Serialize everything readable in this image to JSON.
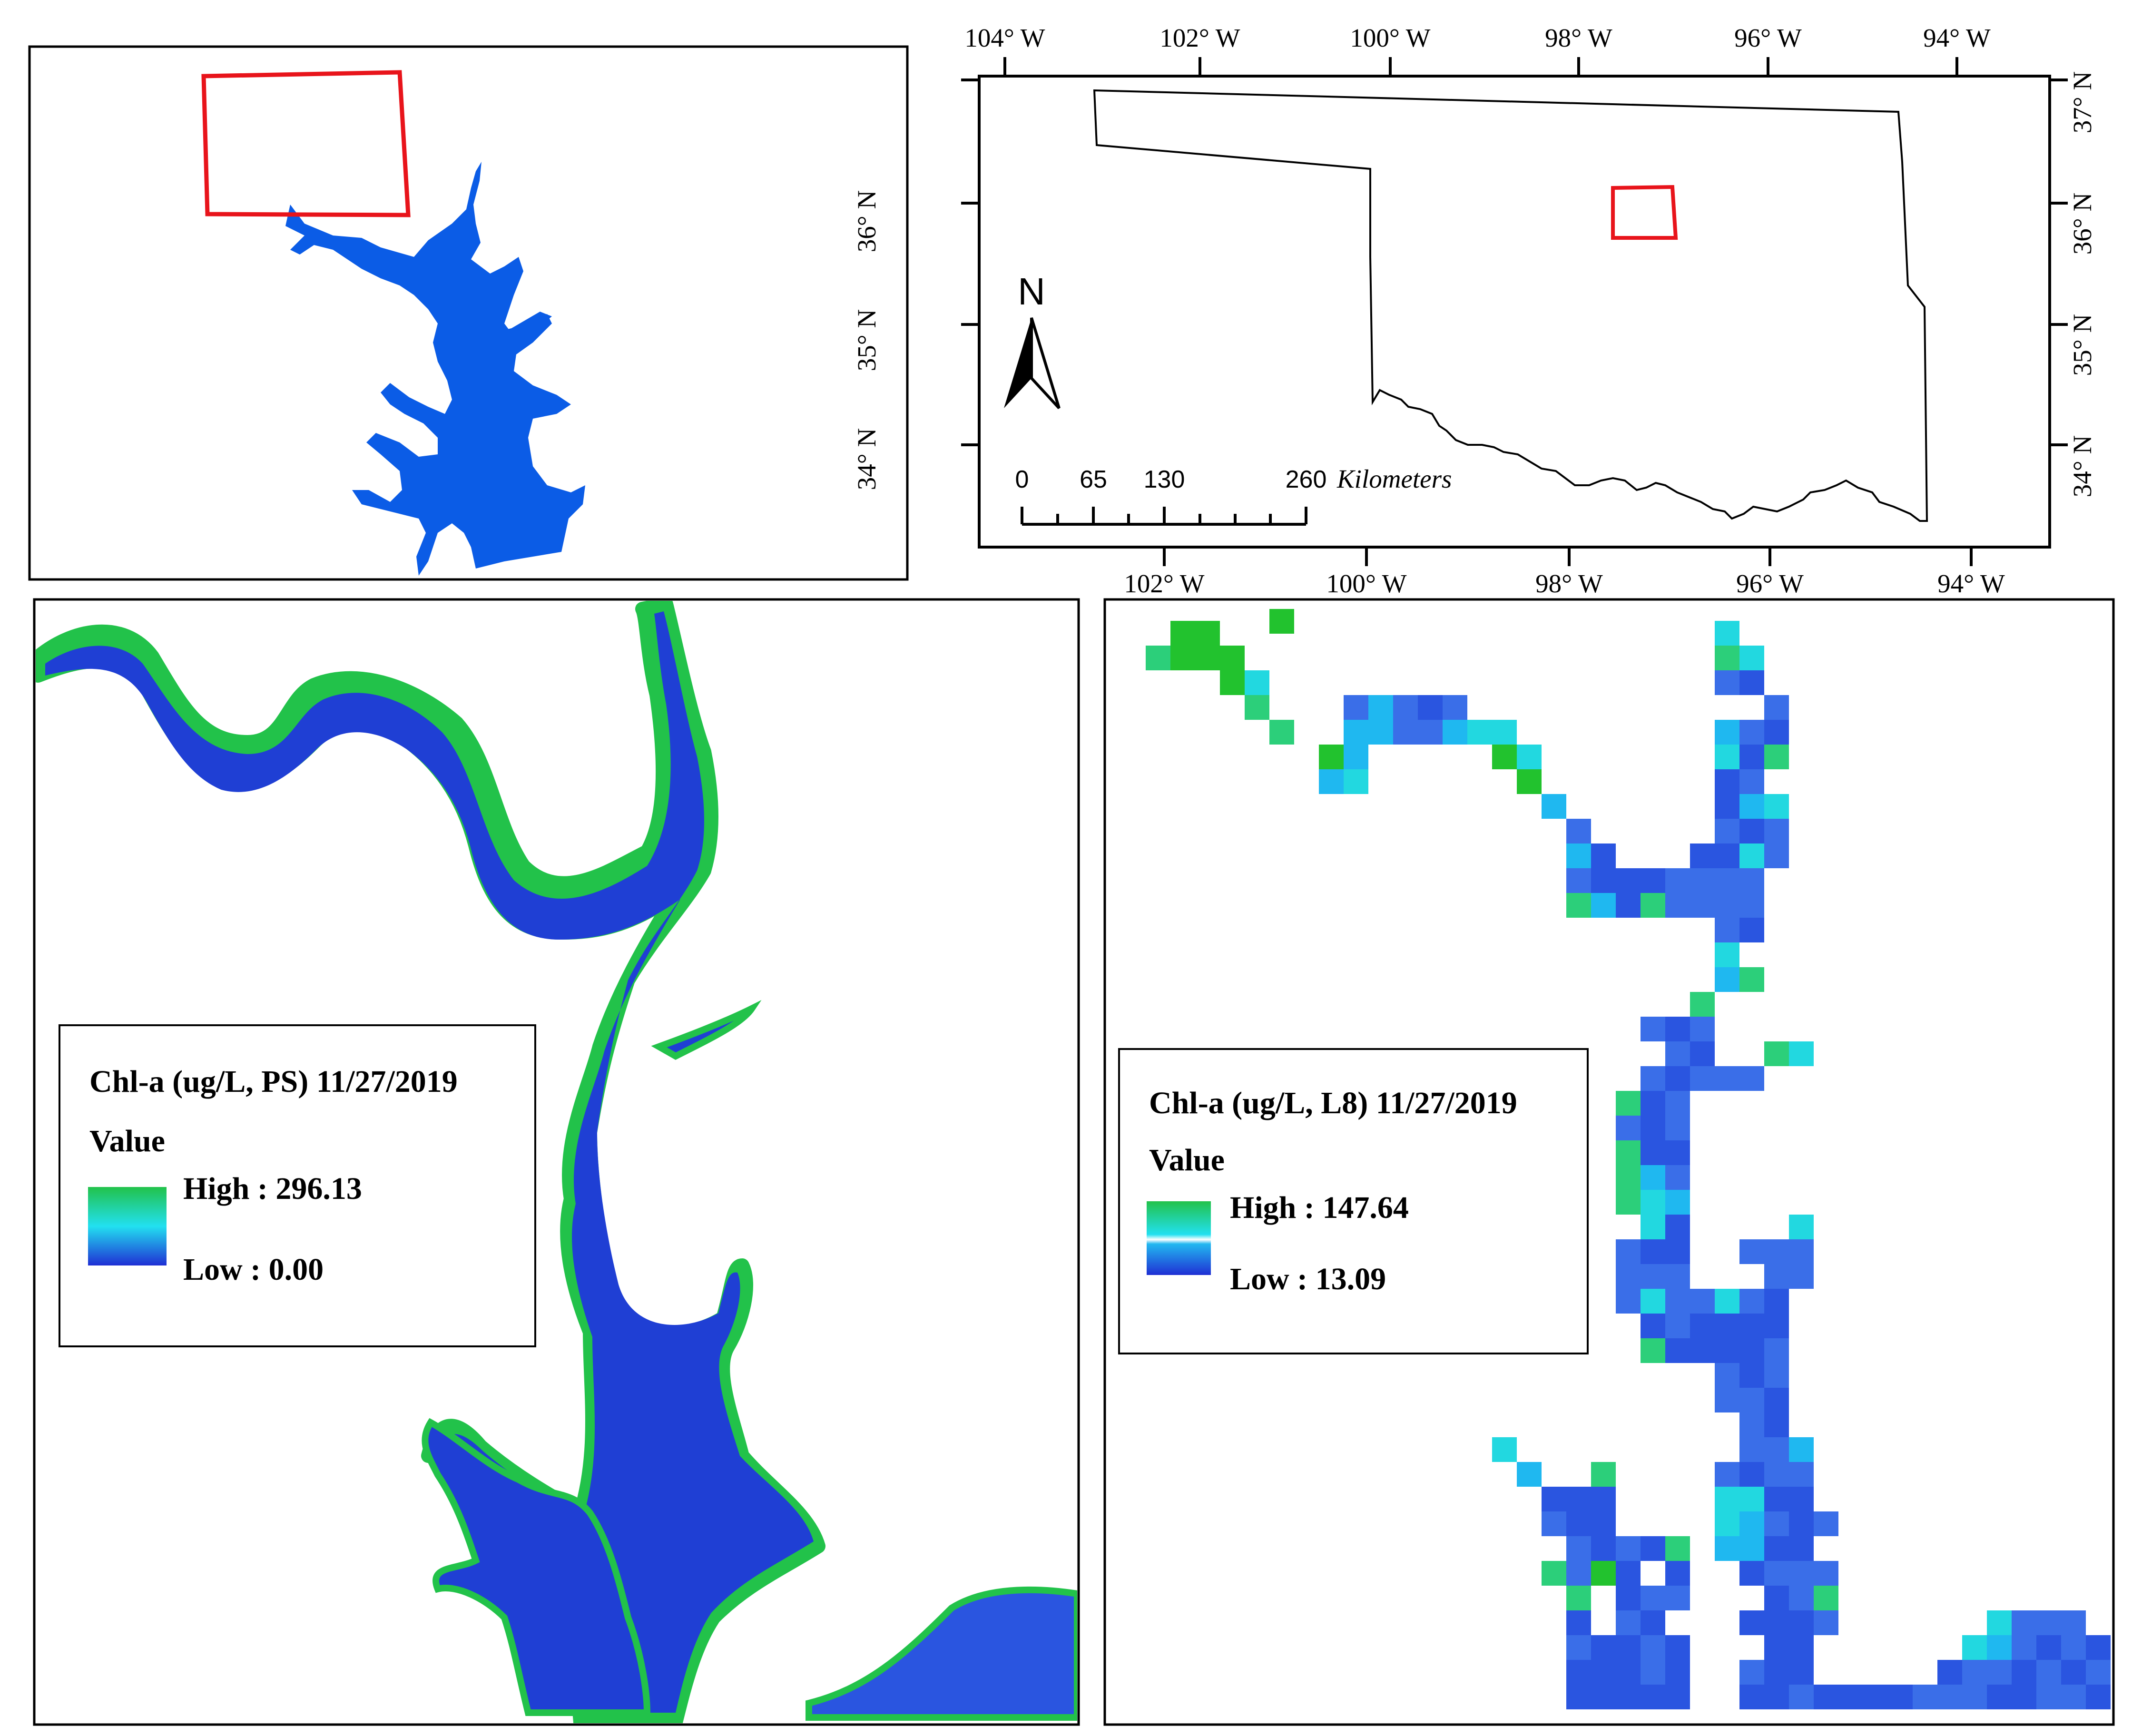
{
  "inset_map": {
    "lat_labels": [
      "36° N",
      "35° N",
      "34° N"
    ]
  },
  "locator_map": {
    "lon_labels_top": [
      "104° W",
      "102° W",
      "100° W",
      "98° W",
      "96° W",
      "94° W"
    ],
    "lon_labels_bottom": [
      "102° W",
      "100° W",
      "98° W",
      "96° W",
      "94° W"
    ],
    "lat_labels": [
      "37° N",
      "36° N",
      "35° N",
      "34° N"
    ],
    "north_arrow": {
      "letter": "N",
      "icon": "north-arrow-icon"
    },
    "scale_bar": {
      "ticks": [
        "0",
        "65",
        "130",
        "260"
      ],
      "unit": "Kilometers"
    },
    "study_area_color": "#e8141b",
    "state_outline_color": "#000000"
  },
  "panel_ps": {
    "legend": {
      "title": "Chl-a (ug/L, PS) 11/27/2019",
      "value_header": "Value",
      "high_label": "High : 296.13",
      "low_label": "Low : 0.00",
      "high_value": 296.13,
      "low_value": 0.0
    },
    "water_color": "#1a3fd6",
    "shore_color": "#22c24a"
  },
  "panel_l8": {
    "legend": {
      "title": "Chl-a (ug/L, L8) 11/27/2019",
      "value_header": "Value",
      "high_label": "High : 147.64",
      "low_label": "Low : 13.09",
      "high_value": 147.64,
      "low_value": 13.09
    },
    "pixel_colors": [
      "#1f3fd4",
      "#2a55e0",
      "#3a6ee8",
      "#1fb8f0",
      "#22d8e0",
      "#2ccf7a",
      "#22c22e"
    ]
  },
  "colors": {
    "lake_fill": "#0b5ce6",
    "ramp_high": "#22c24a",
    "ramp_mid": "#22e0f0",
    "ramp_low": "#1f2fd4"
  }
}
